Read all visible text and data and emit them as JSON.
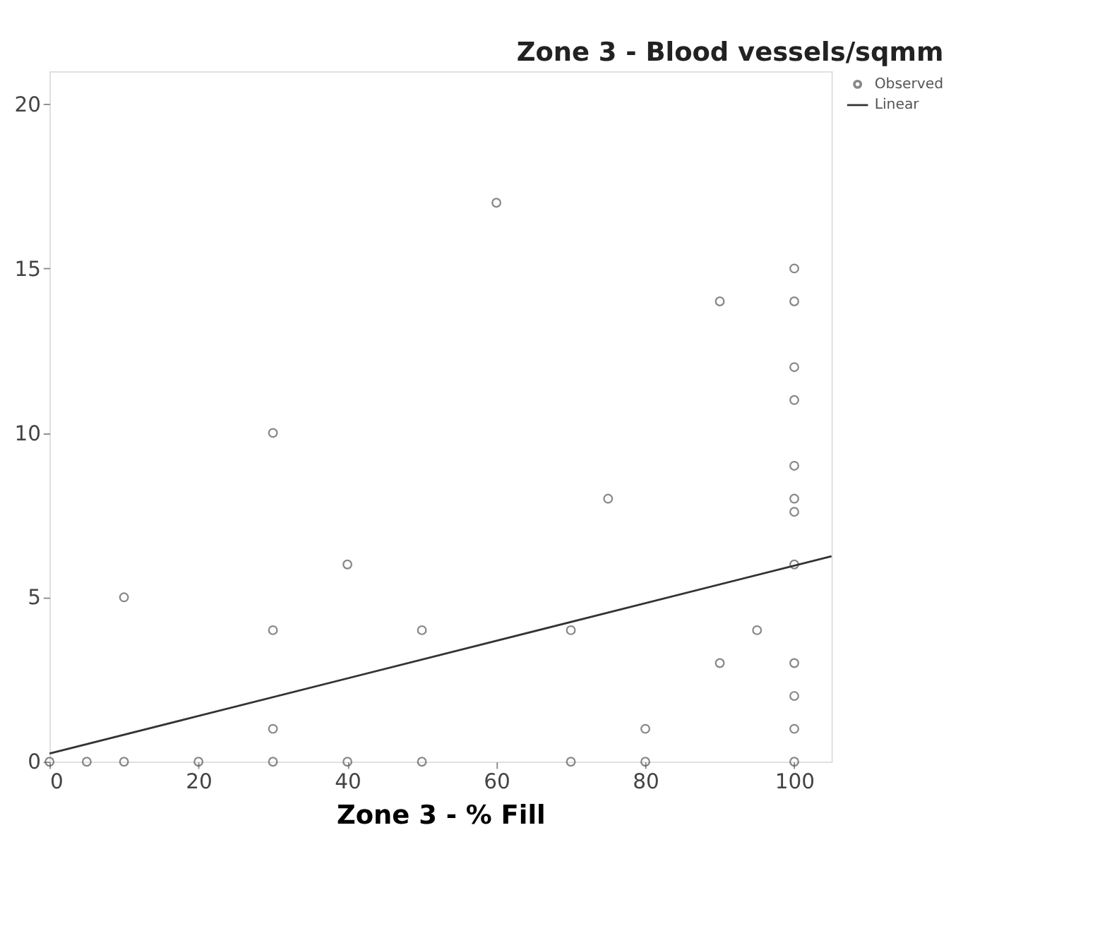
{
  "chart_data": {
    "type": "scatter",
    "title": "Zone 3 - Blood vessels/sqmm",
    "xlabel": "Zone 3 - % Fill",
    "xlim": [
      0,
      105
    ],
    "ylim": [
      0,
      21
    ],
    "xticks": [
      0,
      20,
      40,
      60,
      80,
      100
    ],
    "yticks": [
      0,
      5,
      10,
      15,
      20
    ],
    "grid": false,
    "legend": "top right",
    "series": [
      {
        "name": "Observed",
        "marker": "circle",
        "color": "#555555",
        "x": [
          0,
          5,
          10,
          20,
          30,
          40,
          50,
          70,
          80,
          100,
          10,
          30,
          30,
          30,
          40,
          50,
          60,
          70,
          75,
          80,
          90,
          90,
          95,
          100,
          100,
          100,
          100,
          100,
          100,
          100,
          100,
          100,
          100,
          100
        ],
        "values": [
          0,
          0,
          0,
          0,
          0,
          0,
          0,
          0,
          0,
          0,
          5,
          10,
          4,
          1,
          6,
          4,
          17,
          4,
          8,
          1,
          14,
          3,
          4,
          15,
          14,
          12,
          11,
          9,
          8,
          7.6,
          6,
          3,
          2,
          1
        ]
      },
      {
        "name": "Linear",
        "type": "line",
        "color": "#333333",
        "line_style": "solid",
        "x": [
          0,
          105
        ],
        "values": [
          0.25,
          6.25
        ]
      }
    ]
  }
}
